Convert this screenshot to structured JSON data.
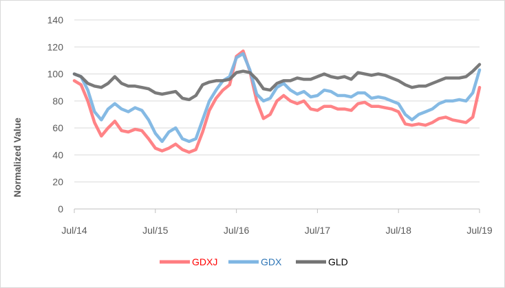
{
  "chart_data": {
    "type": "line",
    "title": "",
    "xlabel": "",
    "ylabel": "Normalized Value",
    "ylim": [
      0,
      140
    ],
    "yticks": [
      0,
      20,
      40,
      60,
      80,
      100,
      120,
      140
    ],
    "xlim": [
      "2014-07",
      "2019-07"
    ],
    "xticks": [
      "Jul/14",
      "Jul/15",
      "Jul/16",
      "Jul/17",
      "Jul/18",
      "Jul/19"
    ],
    "grid": true,
    "legend": "bottom",
    "series": [
      {
        "name": "GDXJ",
        "color": "#ff7c80",
        "x": [
          "2014-07",
          "2014-08",
          "2014-09",
          "2014-10",
          "2014-11",
          "2014-12",
          "2015-01",
          "2015-02",
          "2015-03",
          "2015-04",
          "2015-05",
          "2015-06",
          "2015-07",
          "2015-08",
          "2015-09",
          "2015-10",
          "2015-11",
          "2015-12",
          "2016-01",
          "2016-02",
          "2016-03",
          "2016-04",
          "2016-05",
          "2016-06",
          "2016-07",
          "2016-08",
          "2016-09",
          "2016-10",
          "2016-11",
          "2016-12",
          "2017-01",
          "2017-02",
          "2017-03",
          "2017-04",
          "2017-05",
          "2017-06",
          "2017-07",
          "2017-08",
          "2017-09",
          "2017-10",
          "2017-11",
          "2017-12",
          "2018-01",
          "2018-02",
          "2018-03",
          "2018-04",
          "2018-05",
          "2018-06",
          "2018-07",
          "2018-08",
          "2018-09",
          "2018-10",
          "2018-11",
          "2018-12",
          "2019-01",
          "2019-02",
          "2019-03",
          "2019-04",
          "2019-05",
          "2019-06",
          "2019-07"
        ],
        "values": [
          95,
          92,
          80,
          64,
          54,
          60,
          65,
          58,
          57,
          59,
          58,
          52,
          45,
          43,
          45,
          48,
          44,
          42,
          44,
          57,
          73,
          82,
          88,
          92,
          113,
          117,
          102,
          80,
          67,
          70,
          80,
          84,
          80,
          78,
          80,
          74,
          73,
          76,
          76,
          74,
          74,
          73,
          78,
          79,
          76,
          76,
          75,
          74,
          72,
          63,
          62,
          63,
          62,
          64,
          67,
          68,
          66,
          65,
          64,
          68,
          90
        ]
      },
      {
        "name": "GDX",
        "color": "#7eb6e3",
        "x": [
          "2014-07",
          "2014-08",
          "2014-09",
          "2014-10",
          "2014-11",
          "2014-12",
          "2015-01",
          "2015-02",
          "2015-03",
          "2015-04",
          "2015-05",
          "2015-06",
          "2015-07",
          "2015-08",
          "2015-09",
          "2015-10",
          "2015-11",
          "2015-12",
          "2016-01",
          "2016-02",
          "2016-03",
          "2016-04",
          "2016-05",
          "2016-06",
          "2016-07",
          "2016-08",
          "2016-09",
          "2016-10",
          "2016-11",
          "2016-12",
          "2017-01",
          "2017-02",
          "2017-03",
          "2017-04",
          "2017-05",
          "2017-06",
          "2017-07",
          "2017-08",
          "2017-09",
          "2017-10",
          "2017-11",
          "2017-12",
          "2018-01",
          "2018-02",
          "2018-03",
          "2018-04",
          "2018-05",
          "2018-06",
          "2018-07",
          "2018-08",
          "2018-09",
          "2018-10",
          "2018-11",
          "2018-12",
          "2019-01",
          "2019-02",
          "2019-03",
          "2019-04",
          "2019-05",
          "2019-06",
          "2019-07"
        ],
        "values": [
          100,
          98,
          88,
          72,
          66,
          74,
          78,
          74,
          72,
          75,
          73,
          66,
          56,
          50,
          57,
          60,
          52,
          50,
          52,
          66,
          80,
          88,
          95,
          98,
          112,
          115,
          103,
          85,
          80,
          82,
          90,
          93,
          88,
          85,
          87,
          83,
          84,
          88,
          87,
          84,
          84,
          83,
          86,
          86,
          82,
          83,
          82,
          80,
          78,
          70,
          66,
          70,
          72,
          74,
          78,
          80,
          80,
          81,
          80,
          86,
          103
        ]
      },
      {
        "name": "GLD",
        "color": "#737373",
        "x": [
          "2014-07",
          "2014-08",
          "2014-09",
          "2014-10",
          "2014-11",
          "2014-12",
          "2015-01",
          "2015-02",
          "2015-03",
          "2015-04",
          "2015-05",
          "2015-06",
          "2015-07",
          "2015-08",
          "2015-09",
          "2015-10",
          "2015-11",
          "2015-12",
          "2016-01",
          "2016-02",
          "2016-03",
          "2016-04",
          "2016-05",
          "2016-06",
          "2016-07",
          "2016-08",
          "2016-09",
          "2016-10",
          "2016-11",
          "2016-12",
          "2017-01",
          "2017-02",
          "2017-03",
          "2017-04",
          "2017-05",
          "2017-06",
          "2017-07",
          "2017-08",
          "2017-09",
          "2017-10",
          "2017-11",
          "2017-12",
          "2018-01",
          "2018-02",
          "2018-03",
          "2018-04",
          "2018-05",
          "2018-06",
          "2018-07",
          "2018-08",
          "2018-09",
          "2018-10",
          "2018-11",
          "2018-12",
          "2019-01",
          "2019-02",
          "2019-03",
          "2019-04",
          "2019-05",
          "2019-06",
          "2019-07"
        ],
        "values": [
          100,
          98,
          93,
          91,
          90,
          93,
          98,
          93,
          91,
          91,
          90,
          89,
          86,
          85,
          86,
          87,
          82,
          81,
          84,
          92,
          94,
          95,
          95,
          96,
          101,
          102,
          101,
          96,
          89,
          88,
          93,
          95,
          95,
          97,
          96,
          96,
          98,
          100,
          98,
          97,
          98,
          96,
          101,
          100,
          99,
          100,
          99,
          97,
          95,
          92,
          90,
          91,
          91,
          93,
          95,
          97,
          97,
          97,
          98,
          102,
          107
        ]
      }
    ]
  }
}
